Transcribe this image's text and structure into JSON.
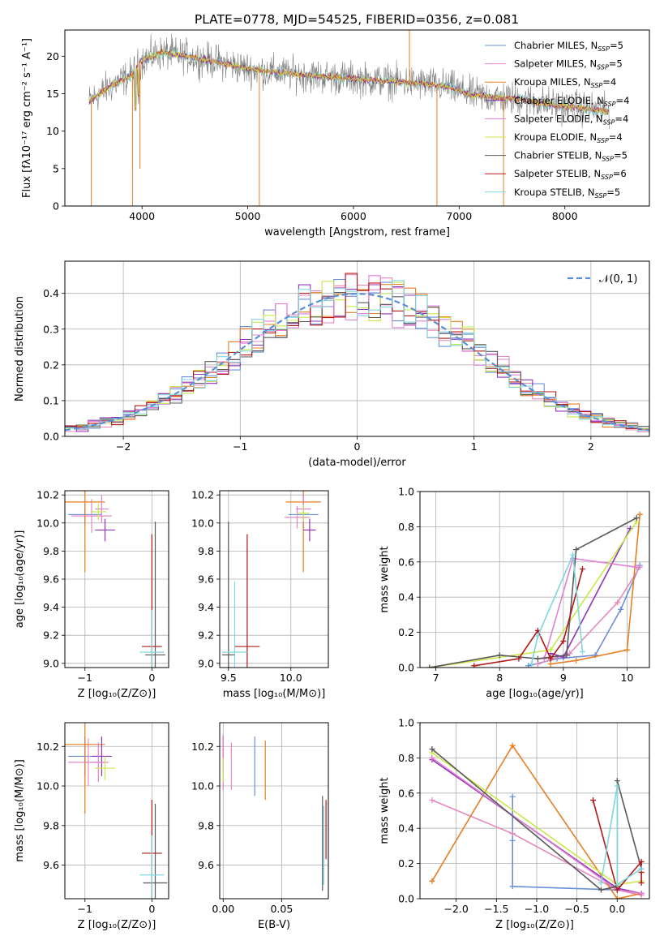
{
  "title": "PLATE=0778, MJD=54525, FIBERID=0356, z=0.081",
  "colors": {
    "chabrier_miles": "#6a8fd8",
    "salpeter_miles": "#e58ac0",
    "kroupa_miles": "#e87e22",
    "chabrier_elodie": "#8e35b8",
    "salpeter_elodie": "#e27fd3",
    "kroupa_elodie": "#c8e84a",
    "chabrier_stelib": "#595959",
    "salpeter_stelib": "#b31818",
    "kroupa_stelib": "#7fd6dc",
    "grid": "#b0b0b0"
  },
  "chart_data": [
    {
      "id": "spectrum",
      "type": "line",
      "xlabel": "wavelength [Angstrom, rest frame]",
      "ylabel": "Flux [fλ10⁻¹⁷ erg cm⁻² s⁻¹ A⁻¹]",
      "xlim": [
        3270,
        8800
      ],
      "ylim": [
        0,
        23.5
      ],
      "xticks": [
        "4000",
        "5000",
        "6000",
        "7000",
        "8000"
      ],
      "yticks": [
        "0",
        "5",
        "10",
        "15",
        "20"
      ],
      "legend": [
        "Chabrier MILES, N_SSP=5",
        "Salpeter MILES, N_SSP=5",
        "Kroupa MILES, N_SSP=4",
        "Chabrier ELODIE, N_SSP=4",
        "Salpeter ELODIE, N_SSP=4",
        "Kroupa ELODIE, N_SSP=4",
        "Chabrier STELIB, N_SSP=5",
        "Salpeter STELIB, N_SSP=6",
        "Kroupa STELIB, N_SSP=5"
      ],
      "legend_placement": "top-right",
      "continuum": [
        [
          3500,
          14.0
        ],
        [
          3700,
          16.0
        ],
        [
          3900,
          17.5
        ],
        [
          4000,
          19.5
        ],
        [
          4200,
          20.5
        ],
        [
          4500,
          19.8
        ],
        [
          4800,
          19.0
        ],
        [
          5000,
          18.3
        ],
        [
          5300,
          17.8
        ],
        [
          5600,
          17.4
        ],
        [
          6000,
          17.0
        ],
        [
          6300,
          16.7
        ],
        [
          6600,
          16.4
        ],
        [
          6900,
          15.9
        ],
        [
          7100,
          14.9
        ],
        [
          7300,
          14.6
        ],
        [
          7600,
          14.2
        ],
        [
          7900,
          13.5
        ],
        [
          8200,
          13.0
        ],
        [
          8400,
          12.6
        ]
      ],
      "spikes": [
        [
          3520,
          0.0
        ],
        [
          3910,
          0.0
        ],
        [
          3980,
          5.0
        ],
        [
          5110,
          0.0
        ],
        [
          6530,
          23.5
        ],
        [
          6790,
          0.0
        ],
        [
          7420,
          0.0
        ]
      ]
    },
    {
      "id": "residuals",
      "type": "histogram",
      "xlabel": "(data-model)/error",
      "ylabel": "Normed distribution",
      "xlim": [
        -2.5,
        2.5
      ],
      "ylim": [
        0,
        0.49
      ],
      "xticks": [
        "−2",
        "−1",
        "0",
        "1",
        "2"
      ],
      "yticks": [
        "0.0",
        "0.1",
        "0.2",
        "0.3",
        "0.4"
      ],
      "bin_width": 0.1,
      "curve_label": "𝒩(0, 1)",
      "legend_placement": "top-right"
    },
    {
      "id": "age_vs_Z",
      "type": "errorbar",
      "xlabel": "Z [log₁₀(Z/Z⊙)]",
      "ylabel": "age  [log₁₀(age/yr)]",
      "xlim": [
        -1.3,
        0.25
      ],
      "ylim": [
        8.97,
        10.23
      ],
      "xticks": [
        "−1",
        "0"
      ],
      "yticks": [
        "9.0",
        "9.2",
        "9.4",
        "9.6",
        "9.8",
        "10.0",
        "10.2"
      ],
      "points": [
        {
          "series": "chabrier_miles",
          "x": -1.0,
          "y": 10.06,
          "xerr": 0.25,
          "yerr": 0.08
        },
        {
          "series": "salpeter_miles",
          "x": -0.9,
          "y": 10.05,
          "xerr": 0.3,
          "yerr": 0.12
        },
        {
          "series": "kroupa_miles",
          "x": -1.0,
          "y": 10.15,
          "xerr": 0.3,
          "yerr": 0.5
        },
        {
          "series": "chabrier_elodie",
          "x": -0.7,
          "y": 9.95,
          "xerr": 0.15,
          "yerr": 0.08
        },
        {
          "series": "salpeter_elodie",
          "x": -0.75,
          "y": 10.1,
          "xerr": 0.1,
          "yerr": 0.1
        },
        {
          "series": "kroupa_elodie",
          "x": -0.8,
          "y": 10.08,
          "xerr": 0.12,
          "yerr": 0.06
        },
        {
          "series": "chabrier_stelib",
          "x": 0.05,
          "y": 9.06,
          "xerr": 0.15,
          "yerr": 0.95
        },
        {
          "series": "salpeter_stelib",
          "x": 0.0,
          "y": 9.12,
          "xerr": 0.15,
          "yerr": 0.8
        },
        {
          "series": "kroupa_stelib",
          "x": 0.0,
          "y": 9.08,
          "xerr": 0.18,
          "yerr": 0.3
        }
      ]
    },
    {
      "id": "age_vs_mass",
      "type": "errorbar",
      "xlabel": "mass [log₁₀(M/M⊙)]",
      "ylabel": "",
      "xlim": [
        9.43,
        10.3
      ],
      "ylim": [
        8.97,
        10.23
      ],
      "xticks": [
        "9.5",
        "10.0"
      ],
      "yticks": [
        "9.0",
        "9.2",
        "9.4",
        "9.6",
        "9.8",
        "10.0",
        "10.2"
      ],
      "points": [
        {
          "series": "chabrier_miles",
          "x": 10.1,
          "y": 10.06,
          "xerr": 0.12,
          "yerr": 0.1
        },
        {
          "series": "salpeter_miles",
          "x": 10.05,
          "y": 10.04,
          "xerr": 0.1,
          "yerr": 0.08
        },
        {
          "series": "kroupa_miles",
          "x": 10.1,
          "y": 10.15,
          "xerr": 0.14,
          "yerr": 0.5
        },
        {
          "series": "chabrier_elodie",
          "x": 10.15,
          "y": 9.95,
          "xerr": 0.05,
          "yerr": 0.08
        },
        {
          "series": "salpeter_elodie",
          "x": 10.1,
          "y": 10.1,
          "xerr": 0.06,
          "yerr": 0.1
        },
        {
          "series": "kroupa_elodie",
          "x": 10.1,
          "y": 10.07,
          "xerr": 0.05,
          "yerr": 0.06
        },
        {
          "series": "chabrier_stelib",
          "x": 9.5,
          "y": 9.06,
          "xerr": 0.05,
          "yerr": 0.95
        },
        {
          "series": "salpeter_stelib",
          "x": 9.65,
          "y": 9.12,
          "xerr": 0.1,
          "yerr": 0.8
        },
        {
          "series": "kroupa_stelib",
          "x": 9.55,
          "y": 9.08,
          "xerr": 0.1,
          "yerr": 0.5
        }
      ]
    },
    {
      "id": "mass_weight_vs_age",
      "type": "line",
      "xlabel": "age  [log₁₀(age/yr)]",
      "ylabel": "mass weight",
      "xlim": [
        6.75,
        10.35
      ],
      "ylim": [
        0,
        1.0
      ],
      "xticks": [
        "7",
        "8",
        "9",
        "10"
      ],
      "yticks": [
        "0.0",
        "0.2",
        "0.4",
        "0.6",
        "0.8",
        "1.0"
      ],
      "series": [
        {
          "series": "chabrier_miles",
          "x": [
            8.45,
            8.9,
            9.5,
            9.9,
            10.2
          ],
          "y": [
            0.01,
            0.05,
            0.07,
            0.33,
            0.58
          ]
        },
        {
          "series": "salpeter_miles",
          "x": [
            8.6,
            9.1,
            9.85,
            10.2
          ],
          "y": [
            0.02,
            0.08,
            0.37,
            0.57
          ]
        },
        {
          "series": "kroupa_miles",
          "x": [
            8.8,
            9.2,
            10.0,
            10.2
          ],
          "y": [
            0.02,
            0.04,
            0.1,
            0.87
          ]
        },
        {
          "series": "chabrier_elodie",
          "x": [
            8.8,
            9.0,
            10.05
          ],
          "y": [
            0.08,
            0.06,
            0.79
          ]
        },
        {
          "series": "salpeter_elodie",
          "x": [
            8.7,
            9.15,
            10.15
          ],
          "y": [
            0.05,
            0.62,
            0.57
          ]
        },
        {
          "series": "kroupa_elodie",
          "x": [
            6.9,
            8.8,
            10.15
          ],
          "y": [
            0.0,
            0.1,
            0.83
          ]
        },
        {
          "series": "chabrier_stelib",
          "x": [
            6.9,
            8.0,
            8.6,
            9.05,
            9.2,
            10.15
          ],
          "y": [
            0.0,
            0.07,
            0.05,
            0.07,
            0.67,
            0.85
          ]
        },
        {
          "series": "salpeter_stelib",
          "x": [
            7.6,
            8.3,
            8.6,
            8.8,
            9.0,
            9.3
          ],
          "y": [
            0.01,
            0.05,
            0.21,
            0.05,
            0.15,
            0.56
          ]
        },
        {
          "series": "kroupa_stelib",
          "x": [
            8.5,
            8.6,
            9.15,
            9.3
          ],
          "y": [
            0.02,
            0.18,
            0.64,
            0.09
          ]
        }
      ]
    },
    {
      "id": "mass_vs_Z",
      "type": "errorbar",
      "xlabel": "Z [log₁₀(Z/Z⊙)]",
      "ylabel": "mass [log₁₀(M/M⊙)]",
      "xlim": [
        -1.3,
        0.25
      ],
      "ylim": [
        9.43,
        10.32
      ],
      "xticks": [
        "−1",
        "0"
      ],
      "yticks": [
        "9.6",
        "9.8",
        "10.0",
        "10.2"
      ],
      "points": [
        {
          "series": "chabrier_miles",
          "x": -1.0,
          "y": 10.15,
          "xerr": 0.25,
          "yerr": 0.1
        },
        {
          "series": "salpeter_miles",
          "x": -0.95,
          "y": 10.12,
          "xerr": 0.3,
          "yerr": 0.12
        },
        {
          "series": "kroupa_miles",
          "x": -1.0,
          "y": 10.21,
          "xerr": 0.3,
          "yerr": 0.35
        },
        {
          "series": "chabrier_elodie",
          "x": -0.75,
          "y": 10.15,
          "xerr": 0.15,
          "yerr": 0.1
        },
        {
          "series": "salpeter_elodie",
          "x": -0.8,
          "y": 10.12,
          "xerr": 0.1,
          "yerr": 0.1
        },
        {
          "series": "kroupa_elodie",
          "x": -0.7,
          "y": 10.09,
          "xerr": 0.15,
          "yerr": 0.06
        },
        {
          "series": "chabrier_stelib",
          "x": 0.05,
          "y": 9.51,
          "xerr": 0.18,
          "yerr": 0.4
        },
        {
          "series": "salpeter_stelib",
          "x": 0.0,
          "y": 9.66,
          "xerr": 0.15,
          "yerr": 0.27
        },
        {
          "series": "kroupa_stelib",
          "x": 0.0,
          "y": 9.55,
          "xerr": 0.18,
          "yerr": 0.2
        }
      ]
    },
    {
      "id": "mass_vs_ebv",
      "type": "errorbar",
      "xlabel": "E(B-V)",
      "ylabel": "",
      "xlim": [
        -0.003,
        0.09
      ],
      "ylim": [
        9.43,
        10.32
      ],
      "xticks": [
        "0.00",
        "0.05"
      ],
      "yticks": [
        "9.6",
        "9.8",
        "10.0",
        "10.2"
      ],
      "points": [
        {
          "series": "chabrier_miles",
          "x": 0.027,
          "y": 10.1,
          "yerr": 0.15
        },
        {
          "series": "salpeter_miles",
          "x": 0.007,
          "y": 10.1,
          "yerr": 0.12
        },
        {
          "series": "kroupa_miles",
          "x": 0.036,
          "y": 10.08,
          "yerr": 0.15
        },
        {
          "series": "chabrier_elodie",
          "x": 0.0,
          "y": 10.15,
          "yerr": 0.1
        },
        {
          "series": "salpeter_elodie",
          "x": 0.0,
          "y": 10.12,
          "yerr": 0.14
        },
        {
          "series": "kroupa_elodie",
          "x": 0.0,
          "y": 10.08,
          "yerr": 0.06
        },
        {
          "series": "chabrier_stelib",
          "x": 0.085,
          "y": 9.71,
          "yerr": 0.24
        },
        {
          "series": "salpeter_stelib",
          "x": 0.088,
          "y": 9.78,
          "yerr": 0.15
        },
        {
          "series": "kroupa_stelib",
          "x": 0.086,
          "y": 9.7,
          "yerr": 0.2
        }
      ]
    },
    {
      "id": "mass_weight_vs_Z",
      "type": "line",
      "xlabel": "Z [log₁₀(Z/Z⊙)]",
      "ylabel": "mass weight",
      "xlim": [
        -2.45,
        0.4
      ],
      "ylim": [
        0,
        1.0
      ],
      "xticks": [
        "−2.0",
        "−1.5",
        "−1.0",
        "−0.5",
        "0.0"
      ],
      "yticks": [
        "0.0",
        "0.2",
        "0.4",
        "0.6",
        "0.8",
        "1.0"
      ],
      "series": [
        {
          "series": "chabrier_miles",
          "x": [
            -1.3,
            -1.3,
            -1.3,
            0.0,
            0.3
          ],
          "y": [
            0.58,
            0.33,
            0.07,
            0.05,
            0.03
          ]
        },
        {
          "series": "salpeter_miles",
          "x": [
            -2.3,
            -1.3,
            0.0,
            0.3
          ],
          "y": [
            0.56,
            0.37,
            0.05,
            0.02
          ]
        },
        {
          "series": "kroupa_miles",
          "x": [
            -2.3,
            -1.3,
            0.0,
            0.3
          ],
          "y": [
            0.1,
            0.87,
            0.0,
            0.03
          ]
        },
        {
          "series": "chabrier_elodie",
          "x": [
            -2.3,
            0.0,
            0.3
          ],
          "y": [
            0.79,
            0.06,
            0.03
          ]
        },
        {
          "series": "salpeter_elodie",
          "x": [
            -2.3,
            0.0,
            0.3
          ],
          "y": [
            0.8,
            0.05,
            0.03
          ]
        },
        {
          "series": "kroupa_elodie",
          "x": [
            -2.3,
            0.0,
            0.3
          ],
          "y": [
            0.83,
            0.08,
            0.1
          ]
        },
        {
          "series": "chabrier_stelib",
          "x": [
            -2.3,
            -0.2,
            0.0,
            0.0,
            0.3
          ],
          "y": [
            0.85,
            0.05,
            0.07,
            0.67,
            0.17
          ]
        },
        {
          "series": "salpeter_stelib",
          "x": [
            -0.3,
            0.0,
            0.3,
            0.3,
            0.3
          ],
          "y": [
            0.56,
            0.05,
            0.21,
            0.15,
            0.09
          ]
        },
        {
          "series": "kroupa_stelib",
          "x": [
            -0.2,
            0.0,
            0.0,
            0.3
          ],
          "y": [
            0.09,
            0.64,
            0.08,
            0.17
          ]
        }
      ]
    }
  ]
}
